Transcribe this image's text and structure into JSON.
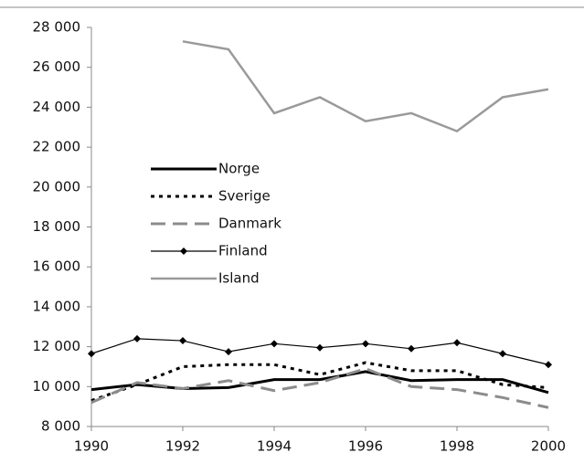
{
  "chart_data": {
    "type": "line",
    "x": [
      1990,
      1991,
      1992,
      1993,
      1994,
      1995,
      1996,
      1997,
      1998,
      1999,
      2000
    ],
    "series": [
      {
        "name": "Norge",
        "color": "#000000",
        "style": "solid",
        "width": 3,
        "marker": "none",
        "values": [
          9850,
          10100,
          9900,
          9950,
          10350,
          10350,
          10750,
          10300,
          10350,
          10350,
          9700
        ]
      },
      {
        "name": "Sverige",
        "color": "#000000",
        "style": "dotted",
        "width": 3,
        "marker": "none",
        "values": [
          9300,
          10100,
          11000,
          11100,
          11100,
          10600,
          11200,
          10800,
          10800,
          10100,
          9950
        ]
      },
      {
        "name": "Danmark",
        "color": "#8c8c8c",
        "style": "dashed",
        "width": 3,
        "marker": "none",
        "values": [
          9200,
          10200,
          9900,
          10300,
          9800,
          10200,
          10900,
          10000,
          9850,
          9450,
          8950
        ]
      },
      {
        "name": "Finland",
        "color": "#000000",
        "style": "solid",
        "width": 1.2,
        "marker": "diamond",
        "values": [
          11650,
          12400,
          12300,
          11750,
          12150,
          11950,
          12150,
          11900,
          12200,
          11650,
          11100
        ]
      },
      {
        "name": "Island",
        "color": "#9a9a9a",
        "style": "solid",
        "width": 2.5,
        "marker": "none",
        "values": [
          null,
          null,
          27300,
          26900,
          23700,
          24500,
          23300,
          23700,
          22800,
          24500,
          24900
        ]
      }
    ],
    "xlim": [
      1990,
      2000
    ],
    "xticks": [
      1990,
      1992,
      1994,
      1996,
      1998,
      2000
    ],
    "ylim": [
      8000,
      28000
    ],
    "yticks": [
      {
        "value": 8000,
        "label": "8 000"
      },
      {
        "value": 10000,
        "label": "10 000"
      },
      {
        "value": 12000,
        "label": "12 000"
      },
      {
        "value": 14000,
        "label": "14 000"
      },
      {
        "value": 16000,
        "label": "16 000"
      },
      {
        "value": 18000,
        "label": "18 000"
      },
      {
        "value": 20000,
        "label": "20 000"
      },
      {
        "value": 22000,
        "label": "22 000"
      },
      {
        "value": 24000,
        "label": "24 000"
      },
      {
        "value": 26000,
        "label": "26 000"
      },
      {
        "value": 28000,
        "label": "28 000"
      }
    ],
    "grid": false,
    "legend": "left"
  }
}
